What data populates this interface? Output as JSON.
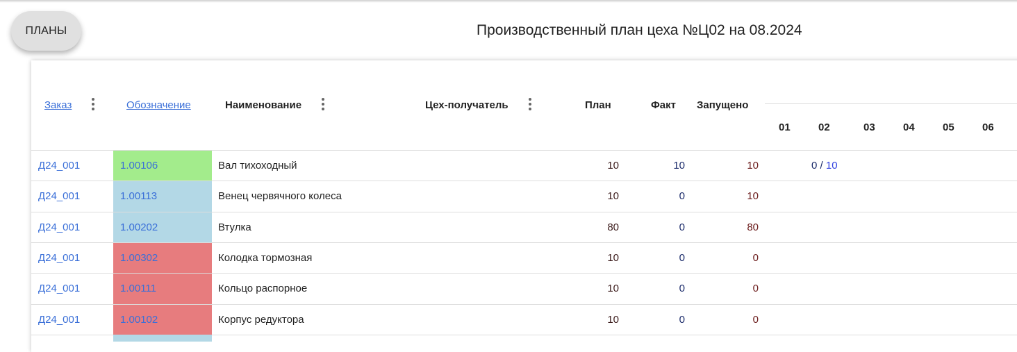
{
  "plans_button": "ПЛАНЫ",
  "title": "Производственный план цеха №Ц02 на 08.2024",
  "columns": {
    "order": "Заказ",
    "code": "Обозначение",
    "name": "Наименование",
    "recipient": "Цех-получатель",
    "plan": "План",
    "fact": "Факт",
    "launched": "Запущено"
  },
  "days": [
    "01",
    "02",
    "03",
    "04",
    "05",
    "06"
  ],
  "colors": {
    "green": "#a3ec8c",
    "blue": "#b3d8e6",
    "red": "#e77c7e",
    "link": "#3a6fd8"
  },
  "rows": [
    {
      "order": "Д24_001",
      "code": "1.00106",
      "status": "green",
      "name": "Вал тихоходный",
      "plan": "10",
      "fact": "10",
      "launched": "10",
      "d02_done": "0",
      "d02_sep": "/",
      "d02_total": "10"
    },
    {
      "order": "Д24_001",
      "code": "1.00113",
      "status": "blue",
      "name": "Венец червячного колеса",
      "plan": "10",
      "fact": "0",
      "launched": "10"
    },
    {
      "order": "Д24_001",
      "code": "1.00202",
      "status": "blue",
      "name": "Втулка",
      "plan": "80",
      "fact": "0",
      "launched": "80"
    },
    {
      "order": "Д24_001",
      "code": "1.00302",
      "status": "red",
      "name": "Колодка тормозная",
      "plan": "10",
      "fact": "0",
      "launched": "0"
    },
    {
      "order": "Д24_001",
      "code": "1.00111",
      "status": "red",
      "name": "Кольцо распорное",
      "plan": "10",
      "fact": "0",
      "launched": "0"
    },
    {
      "order": "Д24_001",
      "code": "1.00102",
      "status": "red",
      "name": "Корпус редуктора",
      "plan": "10",
      "fact": "0",
      "launched": "0"
    }
  ]
}
